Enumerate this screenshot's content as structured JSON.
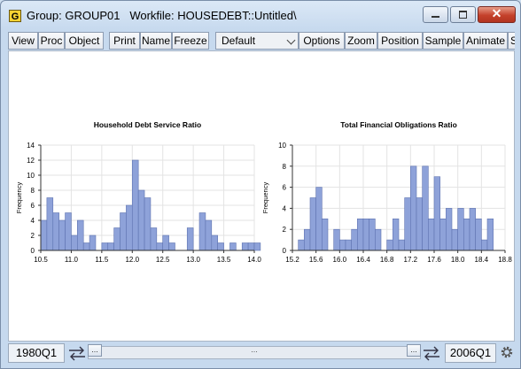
{
  "window": {
    "title": "Group: GROUP01   Workfile: HOUSEDEBT::Untitled\\",
    "icon_letter": "G",
    "close_glyph": "✕"
  },
  "toolbar": {
    "buttons": [
      "View",
      "Proc",
      "Object",
      "Print",
      "Name",
      "Freeze",
      "Options",
      "Zoom",
      "Position",
      "Sample",
      "Animate",
      "S"
    ],
    "dropdown_value": "Default"
  },
  "status": {
    "start": "1980Q1",
    "end": "2006Q1",
    "scroll_dots": "...",
    "thumb_dots": "..."
  },
  "colors": {
    "bar_fill": "#8ea2d9",
    "bar_stroke": "#5e73b0"
  },
  "chart_data": [
    {
      "type": "bar",
      "title": "Household Debt Service Ratio",
      "ylabel": "Frequency",
      "xlim": [
        10.5,
        14.0
      ],
      "ylim": [
        0,
        14
      ],
      "bin_width": 0.1,
      "x_ticks": [
        "10.5",
        "11.0",
        "11.5",
        "12.0",
        "12.5",
        "13.0",
        "13.5",
        "14.0"
      ],
      "y_ticks": [
        "0",
        "2",
        "4",
        "6",
        "8",
        "10",
        "12",
        "14"
      ],
      "x_start": 10.5,
      "values": [
        4,
        7,
        5,
        4,
        5,
        2,
        4,
        1,
        2,
        0,
        1,
        1,
        3,
        5,
        6,
        12,
        8,
        7,
        3,
        1,
        2,
        1,
        0,
        0,
        3,
        0,
        5,
        4,
        2,
        1,
        0,
        1,
        0,
        1,
        1,
        1
      ]
    },
    {
      "type": "bar",
      "title": "Total Financial Obligations Ratio",
      "ylabel": "Frequency",
      "xlim": [
        15.2,
        18.8
      ],
      "ylim": [
        0,
        10
      ],
      "bin_width": 0.1,
      "x_ticks": [
        "15.2",
        "15.6",
        "16.0",
        "16.4",
        "16.8",
        "17.2",
        "17.6",
        "18.0",
        "18.4",
        "18.8"
      ],
      "y_ticks": [
        "0",
        "2",
        "4",
        "6",
        "8",
        "10"
      ],
      "x_start": 15.3,
      "values": [
        1,
        2,
        5,
        6,
        3,
        0,
        2,
        1,
        1,
        2,
        3,
        3,
        3,
        2,
        0,
        1,
        3,
        1,
        5,
        8,
        5,
        8,
        3,
        7,
        3,
        4,
        2,
        4,
        3,
        4,
        3,
        1,
        3
      ]
    }
  ]
}
